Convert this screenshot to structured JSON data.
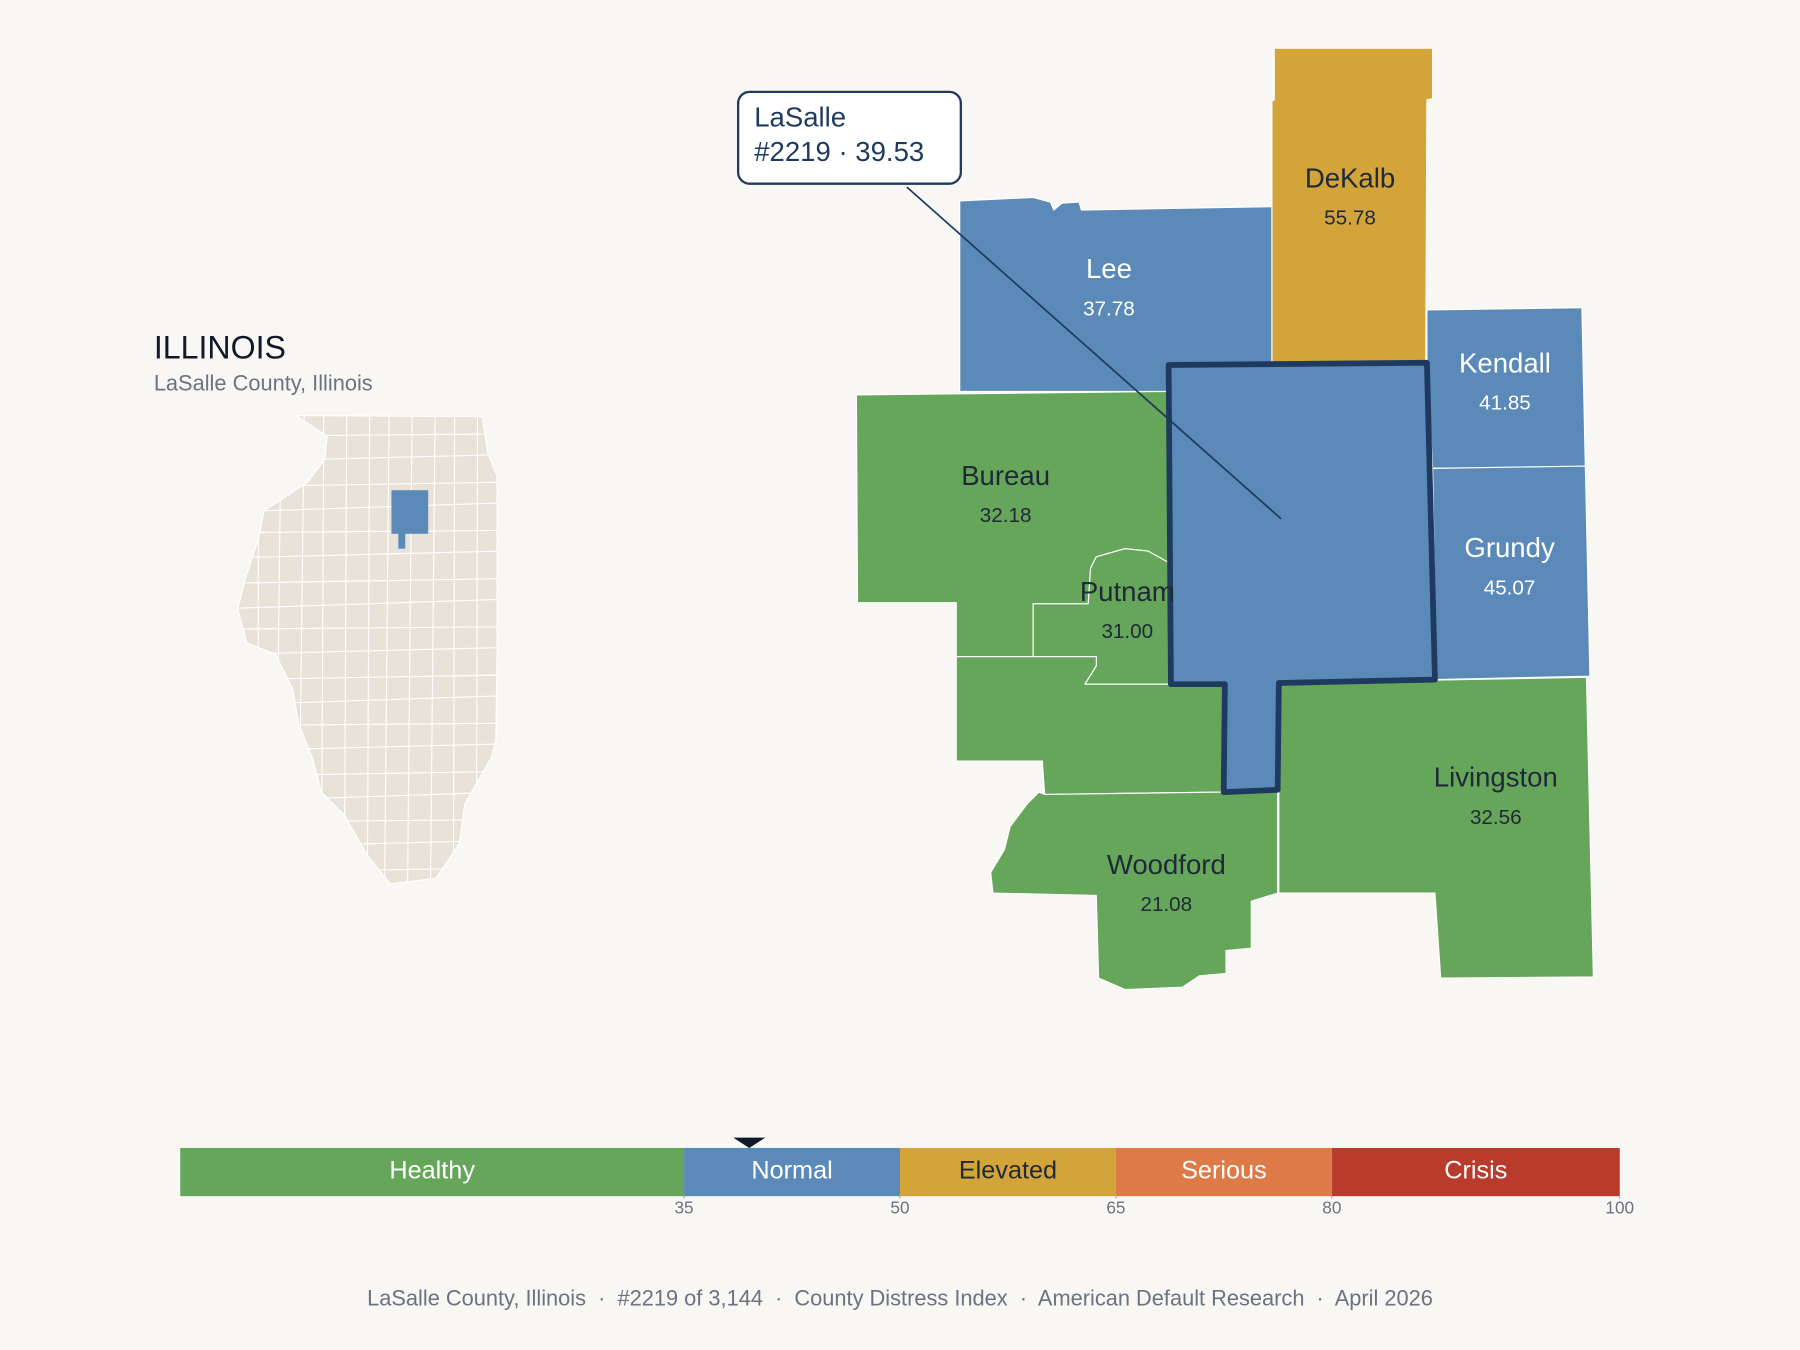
{
  "inset": {
    "title": "ILLINOIS",
    "subtitle": "LaSalle County, Illinois"
  },
  "callout": {
    "line1": "LaSalle",
    "line2": "#2219 · 39.53"
  },
  "counties": [
    {
      "name": "Lee",
      "value": 37.78
    },
    {
      "name": "DeKalb",
      "value": 55.78
    },
    {
      "name": "Kendall",
      "value": 41.85
    },
    {
      "name": "Grundy",
      "value": 45.07
    },
    {
      "name": "Bureau",
      "value": 32.18
    },
    {
      "name": "Putnam",
      "value": 31,
      "value_label": "31.00"
    },
    {
      "name": null,
      "value": null,
      "color": "#66a65a"
    },
    {
      "name": "Woodford",
      "value": 21.08
    },
    {
      "name": "Livingston",
      "value": 32.56
    },
    {
      "name": "LaSalle",
      "value": 39.53,
      "selected": true
    }
  ],
  "scale": {
    "range": [
      0,
      100
    ],
    "ticks": [
      35,
      50,
      65,
      80,
      100
    ],
    "bands": [
      {
        "name": "Healthy",
        "color": "#66a65a",
        "text": "#ffffff"
      },
      {
        "name": "Normal",
        "color": "#5b8ab8",
        "text": "#ffffff"
      },
      {
        "name": "Elevated",
        "color": "#d3a43a",
        "text": "#1f2937"
      },
      {
        "name": "Serious",
        "color": "#dd7a48",
        "text": "#ffffff"
      },
      {
        "name": "Crisis",
        "color": "#b83b2c",
        "text": "#ffffff"
      }
    ]
  },
  "footer": "LaSalle County, Illinois  ·  #2219 of 3,144  ·  County Distress Index  ·  American Default Research  ·  April 2026"
}
